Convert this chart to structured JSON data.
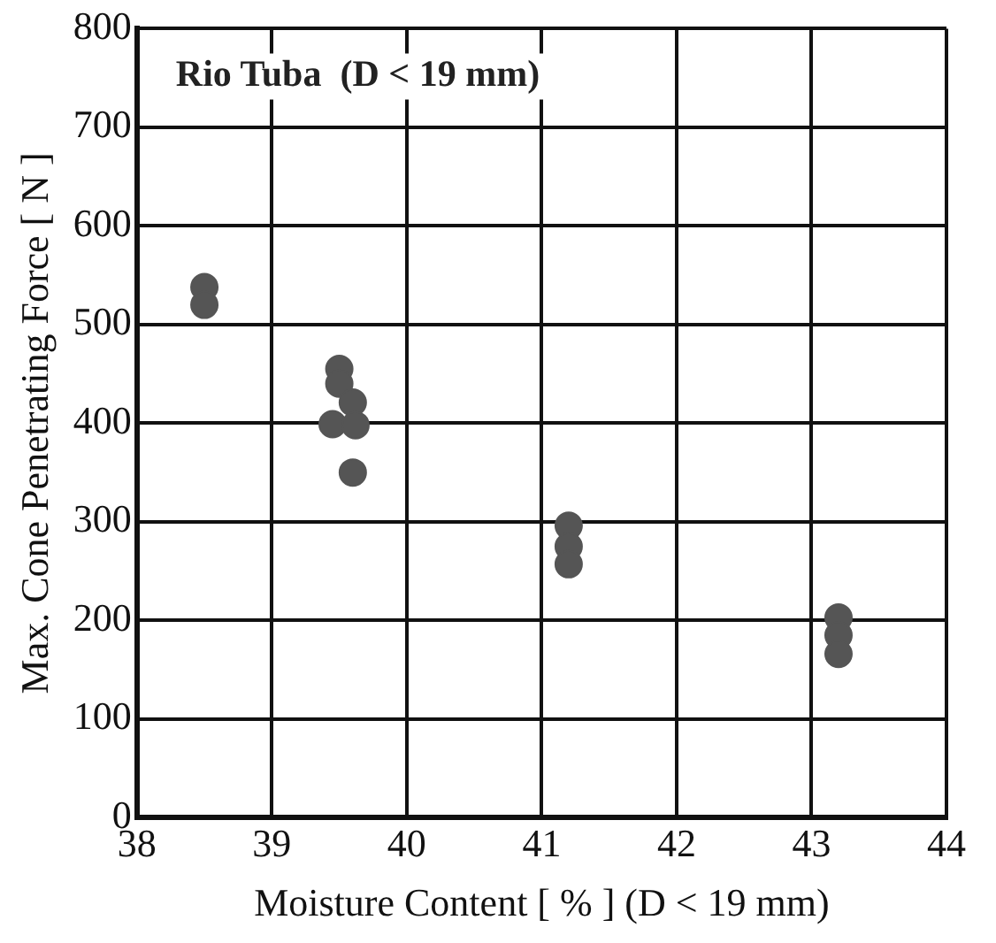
{
  "chart_data": {
    "type": "scatter",
    "xlabel": "Moisture Content [ % ] (D < 19 mm)",
    "ylabel": "Max. Cone Penetrating Force [ N ]",
    "annotations": [
      "Rio Tuba  (D < 19 mm)"
    ],
    "series": [
      {
        "color": "#555555",
        "x": [
          38.5,
          38.5,
          39.5,
          39.5,
          39.6,
          39.45,
          39.62,
          39.6,
          41.2,
          41.2,
          41.2,
          43.2,
          43.2,
          43.2
        ],
        "values": [
          538,
          520,
          455,
          440,
          421,
          399,
          398,
          350,
          296,
          275,
          257,
          203,
          185,
          166
        ]
      }
    ],
    "xlim": [
      38,
      44
    ],
    "xticks": [
      38,
      39,
      40,
      41,
      42,
      43,
      44
    ],
    "ylim": [
      0,
      800
    ],
    "yticks": [
      0,
      100,
      200,
      300,
      400,
      500,
      600,
      700,
      800
    ],
    "grid": true,
    "legend": false,
    "marker": "circle"
  }
}
